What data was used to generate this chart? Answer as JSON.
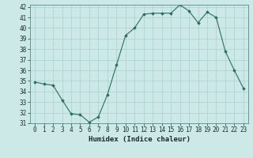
{
  "x": [
    0,
    1,
    2,
    3,
    4,
    5,
    6,
    7,
    8,
    9,
    10,
    11,
    12,
    13,
    14,
    15,
    16,
    17,
    18,
    19,
    20,
    21,
    22,
    23
  ],
  "y": [
    34.9,
    34.7,
    34.6,
    33.2,
    31.9,
    31.8,
    31.1,
    31.6,
    33.7,
    36.5,
    39.3,
    40.0,
    41.3,
    41.4,
    41.4,
    41.4,
    42.2,
    41.6,
    40.5,
    41.5,
    41.0,
    37.8,
    36.0,
    34.3
  ],
  "xlabel": "Humidex (Indice chaleur)",
  "ylim": [
    31,
    42
  ],
  "xlim_min": -0.5,
  "xlim_max": 23.5,
  "yticks": [
    31,
    32,
    33,
    34,
    35,
    36,
    37,
    38,
    39,
    40,
    41,
    42
  ],
  "xticks": [
    0,
    1,
    2,
    3,
    4,
    5,
    6,
    7,
    8,
    9,
    10,
    11,
    12,
    13,
    14,
    15,
    16,
    17,
    18,
    19,
    20,
    21,
    22,
    23
  ],
  "line_color": "#2a6e5e",
  "marker": "D",
  "marker_size": 1.8,
  "bg_color": "#cce9e7",
  "grid_color": "#aacfcd",
  "tick_label_fontsize": 5.5,
  "xlabel_fontsize": 6.5,
  "line_width": 0.8
}
